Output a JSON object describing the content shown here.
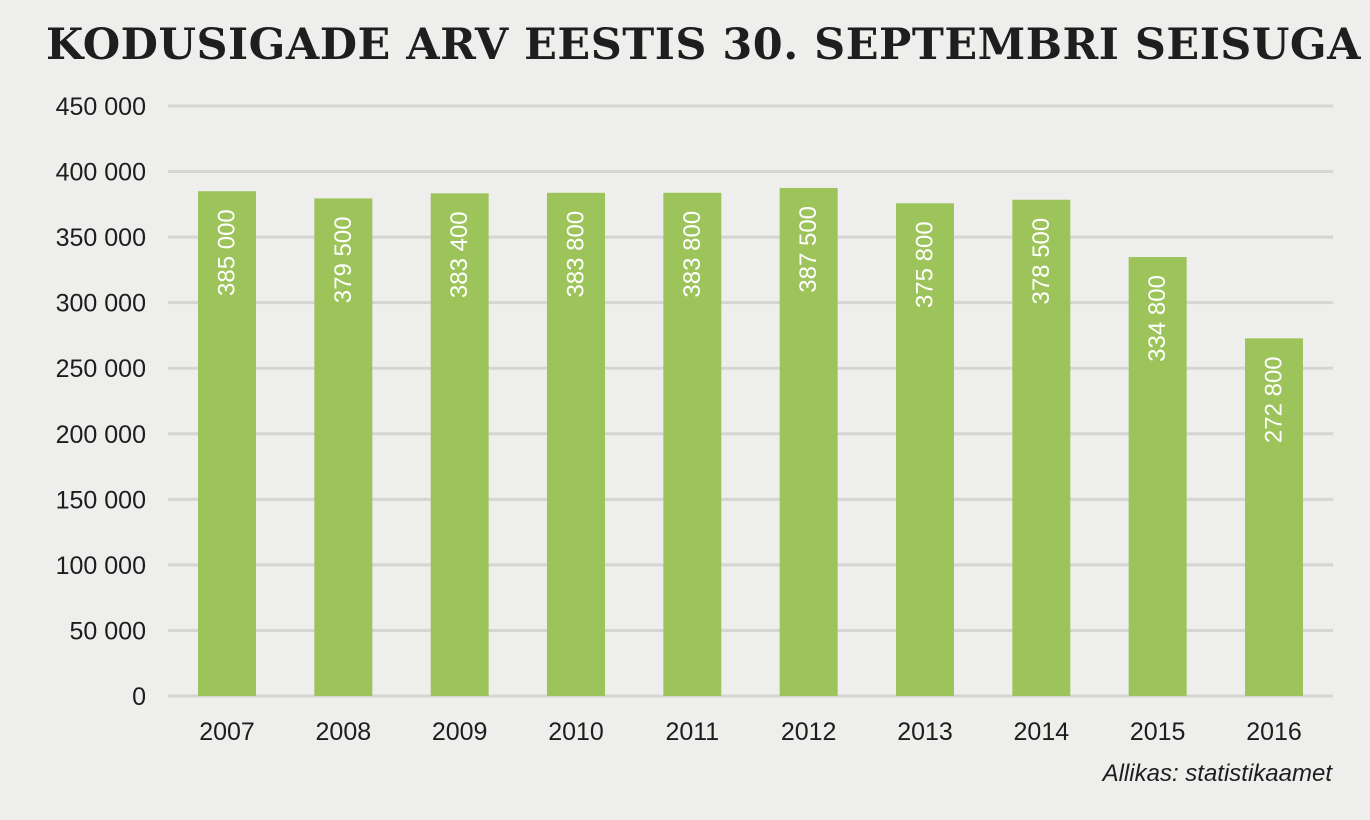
{
  "chart_data": {
    "type": "bar",
    "title": "KODUSIGADE ARV EESTIS 30. SEPTEMBRI SEISUGA",
    "categories": [
      "2007",
      "2008",
      "2009",
      "2010",
      "2011",
      "2012",
      "2013",
      "2014",
      "2015",
      "2016"
    ],
    "values": [
      385000,
      379500,
      383400,
      383800,
      383800,
      387500,
      375800,
      378500,
      334800,
      272800
    ],
    "value_labels": [
      "385 000",
      "379 500",
      "383 400",
      "383 800",
      "383 800",
      "387 500",
      "375 800",
      "378 500",
      "334 800",
      "272 800"
    ],
    "y_ticks": [
      {
        "value": 0,
        "label": "0"
      },
      {
        "value": 50000,
        "label": "50 000"
      },
      {
        "value": 100000,
        "label": "100 000"
      },
      {
        "value": 150000,
        "label": "150 000"
      },
      {
        "value": 200000,
        "label": "200 000"
      },
      {
        "value": 250000,
        "label": "250 000"
      },
      {
        "value": 300000,
        "label": "300 000"
      },
      {
        "value": 350000,
        "label": "350 000"
      },
      {
        "value": 400000,
        "label": "400 000"
      },
      {
        "value": 450000,
        "label": "450 000"
      }
    ],
    "ylim": [
      0,
      450000
    ],
    "grid": true,
    "xlabel": "",
    "ylabel": "",
    "colors": {
      "bar": "#9dc45b",
      "grid": "#d5d5d3",
      "background": "#eeeeec",
      "value_label": "#ffffff",
      "text": "#1d1d1d"
    },
    "source": "Allikas: statistikaamet"
  }
}
